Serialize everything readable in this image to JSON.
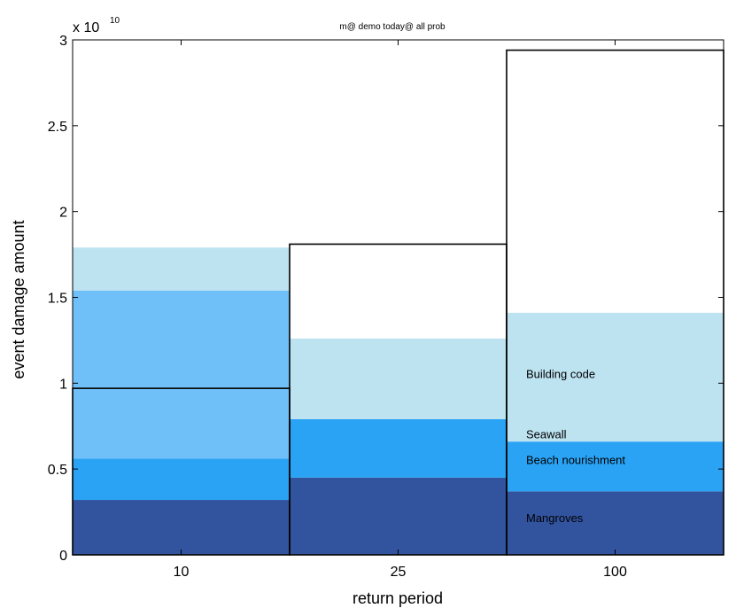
{
  "chart_data": {
    "type": "bar",
    "title": "m@ demo today@ all prob",
    "xlabel": "return period",
    "ylabel": "event damage amount",
    "y_exponent_base": "x 10",
    "y_exponent_power": "10",
    "categories": [
      "10",
      "25",
      "100"
    ],
    "ylim": [
      0,
      3
    ],
    "yticks": [
      0,
      0.5,
      1,
      1.5,
      2,
      2.5,
      3
    ],
    "ytick_labels": [
      "0",
      "0.5",
      "1",
      "1.5",
      "2",
      "2.5",
      "3"
    ],
    "totals": [
      0.97,
      1.81,
      2.94
    ],
    "layers": [
      {
        "name": "Mangroves",
        "color": "#32549f",
        "values": [
          0.32,
          0.45,
          0.37
        ]
      },
      {
        "name": "Beach nourishment",
        "color": "#2aa3f5",
        "values": [
          0.24,
          0.34,
          0.29
        ]
      },
      {
        "name": "Seawall",
        "color": "#6fc0f8",
        "values": [
          0.98,
          0.0,
          0.0
        ]
      },
      {
        "name": "Building code",
        "color": "#bde3f1",
        "values": [
          0.25,
          0.47,
          0.75
        ]
      }
    ],
    "annotations": [
      {
        "text": "Building code",
        "category": "100",
        "y": 1.03
      },
      {
        "text": "Seawall",
        "category": "100",
        "y": 0.68
      },
      {
        "text": "Beach nourishment",
        "category": "100",
        "y": 0.53
      },
      {
        "text": "Mangroves",
        "category": "100",
        "y": 0.19
      }
    ]
  }
}
